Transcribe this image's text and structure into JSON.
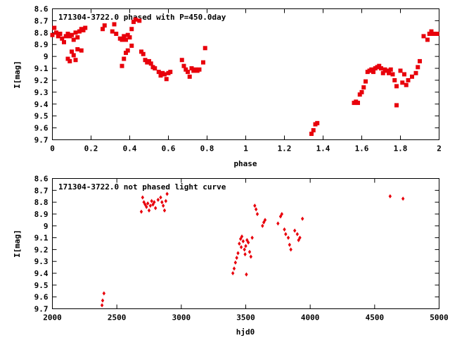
{
  "chart_data": [
    {
      "type": "scatter",
      "title": "171304-3722.0 phased with P=450.0day",
      "xlabel": "phase",
      "ylabel": "I[mag]",
      "xlim": [
        0,
        2
      ],
      "ylim": [
        8.6,
        9.7
      ],
      "y_inverted": true,
      "grid": false,
      "xticks": [
        "0",
        "0.2",
        "0.4",
        "0.6",
        "0.8",
        "1",
        "1.2",
        "1.4",
        "1.6",
        "1.8",
        "2"
      ],
      "yticks": [
        "8.6",
        "8.7",
        "8.8",
        "8.9",
        "9",
        "9.1",
        "9.2",
        "9.3",
        "9.4",
        "9.5",
        "9.6",
        "9.7"
      ],
      "marker_color": "#e8000b",
      "points": [
        [
          0.0,
          8.82
        ],
        [
          0.01,
          8.76
        ],
        [
          0.02,
          8.8
        ],
        [
          0.03,
          8.83
        ],
        [
          0.04,
          8.81
        ],
        [
          0.05,
          8.85
        ],
        [
          0.06,
          8.88
        ],
        [
          0.07,
          8.83
        ],
        [
          0.08,
          8.81
        ],
        [
          0.09,
          8.83
        ],
        [
          0.1,
          8.82
        ],
        [
          0.11,
          8.86
        ],
        [
          0.12,
          8.8
        ],
        [
          0.13,
          8.84
        ],
        [
          0.14,
          8.79
        ],
        [
          0.15,
          8.77
        ],
        [
          0.16,
          8.78
        ],
        [
          0.17,
          8.76
        ],
        [
          0.08,
          9.02
        ],
        [
          0.09,
          9.04
        ],
        [
          0.1,
          8.96
        ],
        [
          0.11,
          8.99
        ],
        [
          0.12,
          9.03
        ],
        [
          0.13,
          8.94
        ],
        [
          0.15,
          8.95
        ],
        [
          0.26,
          8.77
        ],
        [
          0.27,
          8.74
        ],
        [
          0.31,
          8.79
        ],
        [
          0.32,
          8.73
        ],
        [
          0.33,
          8.81
        ],
        [
          0.35,
          8.85
        ],
        [
          0.36,
          8.86
        ],
        [
          0.37,
          8.83
        ],
        [
          0.38,
          8.86
        ],
        [
          0.39,
          8.82
        ],
        [
          0.4,
          8.84
        ],
        [
          0.41,
          8.77
        ],
        [
          0.42,
          8.71
        ],
        [
          0.43,
          8.69
        ],
        [
          0.45,
          8.7
        ],
        [
          0.36,
          9.08
        ],
        [
          0.37,
          9.02
        ],
        [
          0.38,
          8.97
        ],
        [
          0.39,
          8.95
        ],
        [
          0.41,
          8.91
        ],
        [
          0.46,
          8.96
        ],
        [
          0.47,
          8.98
        ],
        [
          0.48,
          9.03
        ],
        [
          0.49,
          9.05
        ],
        [
          0.5,
          9.04
        ],
        [
          0.51,
          9.06
        ],
        [
          0.52,
          9.09
        ],
        [
          0.53,
          9.1
        ],
        [
          0.55,
          9.13
        ],
        [
          0.56,
          9.16
        ],
        [
          0.57,
          9.14
        ],
        [
          0.58,
          9.15
        ],
        [
          0.59,
          9.19
        ],
        [
          0.6,
          9.14
        ],
        [
          0.61,
          9.13
        ],
        [
          0.67,
          9.03
        ],
        [
          0.68,
          9.08
        ],
        [
          0.69,
          9.11
        ],
        [
          0.7,
          9.13
        ],
        [
          0.71,
          9.17
        ],
        [
          0.72,
          9.1
        ],
        [
          0.73,
          9.12
        ],
        [
          0.74,
          9.11
        ],
        [
          0.75,
          9.12
        ],
        [
          0.76,
          9.11
        ],
        [
          0.78,
          9.05
        ],
        [
          0.79,
          8.93
        ],
        [
          1.34,
          9.65
        ],
        [
          1.35,
          9.62
        ],
        [
          1.36,
          9.57
        ],
        [
          1.37,
          9.56
        ],
        [
          1.56,
          9.39
        ],
        [
          1.57,
          9.38
        ],
        [
          1.58,
          9.39
        ],
        [
          1.59,
          9.32
        ],
        [
          1.6,
          9.3
        ],
        [
          1.61,
          9.26
        ],
        [
          1.62,
          9.21
        ],
        [
          1.63,
          9.13
        ],
        [
          1.64,
          9.12
        ],
        [
          1.65,
          9.11
        ],
        [
          1.66,
          9.13
        ],
        [
          1.67,
          9.1
        ],
        [
          1.68,
          9.09
        ],
        [
          1.69,
          9.08
        ],
        [
          1.7,
          9.1
        ],
        [
          1.71,
          9.14
        ],
        [
          1.72,
          9.11
        ],
        [
          1.73,
          9.12
        ],
        [
          1.74,
          9.14
        ],
        [
          1.75,
          9.11
        ],
        [
          1.76,
          9.15
        ],
        [
          1.77,
          9.2
        ],
        [
          1.78,
          9.25
        ],
        [
          1.78,
          9.41
        ],
        [
          1.8,
          9.12
        ],
        [
          1.81,
          9.22
        ],
        [
          1.82,
          9.15
        ],
        [
          1.83,
          9.24
        ],
        [
          1.84,
          9.2
        ],
        [
          1.86,
          9.17
        ],
        [
          1.88,
          9.14
        ],
        [
          1.89,
          9.09
        ],
        [
          1.9,
          9.04
        ],
        [
          1.92,
          8.83
        ],
        [
          1.94,
          8.86
        ],
        [
          1.95,
          8.81
        ],
        [
          1.96,
          8.79
        ],
        [
          1.97,
          8.81
        ],
        [
          1.99,
          8.81
        ]
      ]
    },
    {
      "type": "scatter",
      "title": "171304-3722.0 not phased light curve",
      "xlabel": "hjd0",
      "ylabel": "I[mag]",
      "xlim": [
        2000,
        5000
      ],
      "ylim": [
        8.6,
        9.7
      ],
      "y_inverted": true,
      "grid": false,
      "xticks": [
        "2000",
        "2500",
        "3000",
        "3500",
        "4000",
        "4500",
        "5000"
      ],
      "yticks": [
        "8.6",
        "8.7",
        "8.8",
        "8.9",
        "9",
        "9.1",
        "9.2",
        "9.3",
        "9.4",
        "9.5",
        "9.6",
        "9.7"
      ],
      "marker_color": "#e8000b",
      "points": [
        [
          2385,
          9.67
        ],
        [
          2390,
          9.63
        ],
        [
          2400,
          9.57
        ],
        [
          2690,
          8.88
        ],
        [
          2700,
          8.76
        ],
        [
          2710,
          8.8
        ],
        [
          2720,
          8.82
        ],
        [
          2730,
          8.84
        ],
        [
          2740,
          8.81
        ],
        [
          2750,
          8.87
        ],
        [
          2760,
          8.83
        ],
        [
          2770,
          8.79
        ],
        [
          2780,
          8.82
        ],
        [
          2790,
          8.8
        ],
        [
          2800,
          8.85
        ],
        [
          2820,
          8.78
        ],
        [
          2840,
          8.76
        ],
        [
          2850,
          8.8
        ],
        [
          2860,
          8.83
        ],
        [
          2870,
          8.87
        ],
        [
          2880,
          8.79
        ],
        [
          2890,
          8.73
        ],
        [
          3400,
          9.4
        ],
        [
          3410,
          9.36
        ],
        [
          3420,
          9.31
        ],
        [
          3430,
          9.27
        ],
        [
          3440,
          9.23
        ],
        [
          3450,
          9.15
        ],
        [
          3460,
          9.11
        ],
        [
          3465,
          9.18
        ],
        [
          3470,
          9.09
        ],
        [
          3480,
          9.13
        ],
        [
          3490,
          9.2
        ],
        [
          3495,
          9.24
        ],
        [
          3500,
          9.17
        ],
        [
          3505,
          9.41
        ],
        [
          3510,
          9.12
        ],
        [
          3520,
          9.14
        ],
        [
          3530,
          9.22
        ],
        [
          3540,
          9.26
        ],
        [
          3550,
          9.1
        ],
        [
          3570,
          8.83
        ],
        [
          3580,
          8.86
        ],
        [
          3590,
          8.9
        ],
        [
          3630,
          9.0
        ],
        [
          3640,
          8.97
        ],
        [
          3650,
          8.95
        ],
        [
          3750,
          8.98
        ],
        [
          3770,
          8.92
        ],
        [
          3780,
          8.9
        ],
        [
          3800,
          9.03
        ],
        [
          3810,
          9.07
        ],
        [
          3830,
          9.1
        ],
        [
          3840,
          9.16
        ],
        [
          3850,
          9.2
        ],
        [
          3880,
          9.04
        ],
        [
          3900,
          9.07
        ],
        [
          3910,
          9.12
        ],
        [
          3920,
          9.1
        ],
        [
          3940,
          8.94
        ],
        [
          4620,
          8.75
        ],
        [
          4720,
          8.77
        ]
      ]
    }
  ]
}
